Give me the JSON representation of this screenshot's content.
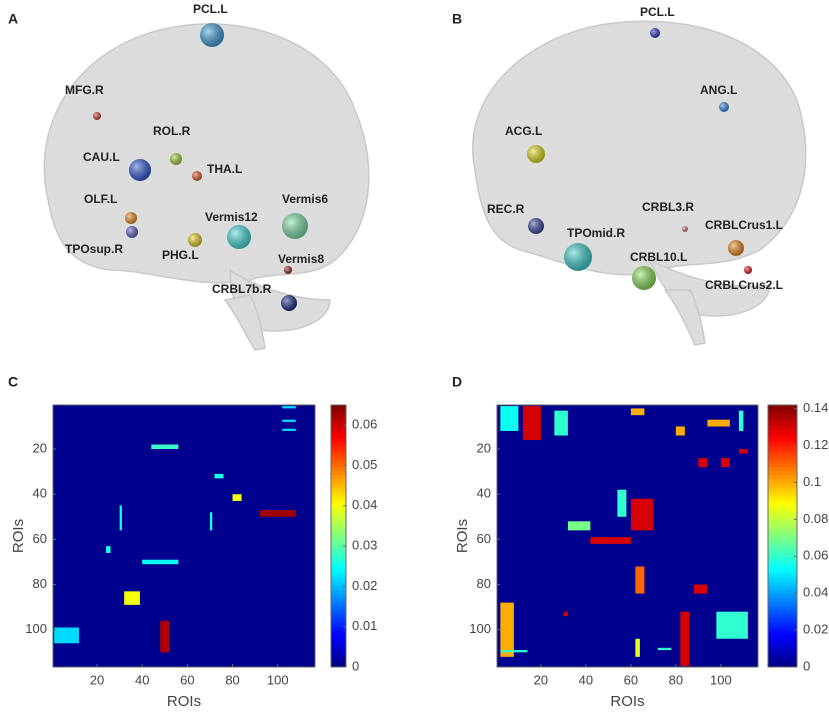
{
  "panels": [
    {
      "letter": "A",
      "nodes": [
        {
          "label": "PCL.L",
          "color": "#3ea0e0"
        },
        {
          "label": "MFG.R",
          "color": "#c8463c"
        },
        {
          "label": "ROL.R",
          "color": "#9fd23c"
        },
        {
          "label": "CAU.L",
          "color": "#2f57d8"
        },
        {
          "label": "THA.L",
          "color": "#e55a2c"
        },
        {
          "label": "OLF.L",
          "color": "#ee8a1e"
        },
        {
          "label": "TPOsup.R",
          "color": "#5a62c8"
        },
        {
          "label": "Vermis12",
          "color": "#46dcdc"
        },
        {
          "label": "Vermis6",
          "color": "#7ee0a8"
        },
        {
          "label": "PHG.L",
          "color": "#e6d21e"
        },
        {
          "label": "Vermis8",
          "color": "#a0281e"
        },
        {
          "label": "CRBL7b.R",
          "color": "#1e2a8c"
        }
      ]
    },
    {
      "letter": "B",
      "nodes": [
        {
          "label": "PCL.L",
          "color": "#2838c8"
        },
        {
          "label": "ANG.L",
          "color": "#2f8ce0"
        },
        {
          "label": "ACG.L",
          "color": "#e0dc1e"
        },
        {
          "label": "REC.R",
          "color": "#3a48a0"
        },
        {
          "label": "CRBL3.R",
          "color": "#d08080"
        },
        {
          "label": "CRBLCrus1.L",
          "color": "#ee8a1e"
        },
        {
          "label": "TPOmid.R",
          "color": "#3ed0d0"
        },
        {
          "label": "CRBL10.L",
          "color": "#8ee05a"
        },
        {
          "label": "CRBLCrus2.L",
          "color": "#e01e1e"
        }
      ]
    }
  ],
  "chart_data": [
    {
      "type": "heatmap",
      "letter": "C",
      "xlabel": "ROIs",
      "ylabel": "ROIs",
      "xlim": [
        0.5,
        116.5
      ],
      "ylim": [
        0.5,
        116.5
      ],
      "y_reversed": true,
      "xticks": [
        20,
        40,
        60,
        80,
        100
      ],
      "yticks": [
        20,
        40,
        60,
        80,
        100
      ],
      "clim": [
        0,
        0.065
      ],
      "cticks": [
        0,
        0.01,
        0.02,
        0.03,
        0.04,
        0.05,
        0.06
      ],
      "colormap": "jet",
      "background": "#00008f",
      "cells": [
        {
          "x0": 102,
          "x1": 108,
          "y0": 1,
          "y1": 2,
          "value": 0.022
        },
        {
          "x0": 102,
          "x1": 108,
          "y0": 7,
          "y1": 8,
          "value": 0.022
        },
        {
          "x0": 102,
          "x1": 108,
          "y0": 11,
          "y1": 12,
          "value": 0.022
        },
        {
          "x0": 44,
          "x1": 56,
          "y0": 18,
          "y1": 20,
          "value": 0.028
        },
        {
          "x0": 72,
          "x1": 76,
          "y0": 31,
          "y1": 33,
          "value": 0.026
        },
        {
          "x0": 80,
          "x1": 84,
          "y0": 40,
          "y1": 43,
          "value": 0.04
        },
        {
          "x0": 92,
          "x1": 108,
          "y0": 47,
          "y1": 50,
          "value": 0.063
        },
        {
          "x0": 30,
          "x1": 31,
          "y0": 45,
          "y1": 56,
          "value": 0.026
        },
        {
          "x0": 70,
          "x1": 71,
          "y0": 48,
          "y1": 56,
          "value": 0.026
        },
        {
          "x0": 40,
          "x1": 56,
          "y0": 69,
          "y1": 71,
          "value": 0.025
        },
        {
          "x0": 32,
          "x1": 39,
          "y0": 83,
          "y1": 89,
          "value": 0.04
        },
        {
          "x0": 1,
          "x1": 12,
          "y0": 99,
          "y1": 106,
          "value": 0.022
        },
        {
          "x0": 48,
          "x1": 52,
          "y0": 96,
          "y1": 110,
          "value": 0.062
        },
        {
          "x0": 24,
          "x1": 26,
          "y0": 63,
          "y1": 66,
          "value": 0.026
        }
      ]
    },
    {
      "type": "heatmap",
      "letter": "D",
      "xlabel": "ROIs",
      "ylabel": "ROIs",
      "xlim": [
        0.5,
        116.5
      ],
      "ylim": [
        0.5,
        116.5
      ],
      "y_reversed": true,
      "xticks": [
        20,
        40,
        60,
        80,
        100
      ],
      "yticks": [
        20,
        40,
        60,
        80,
        100
      ],
      "clim": [
        0,
        0.142
      ],
      "cticks": [
        0,
        0.02,
        0.04,
        0.06,
        0.08,
        0.1,
        0.12,
        0.14
      ],
      "colormap": "jet",
      "background": "#00008f",
      "cells": [
        {
          "x0": 2,
          "x1": 10,
          "y0": 1,
          "y1": 12,
          "value": 0.055
        },
        {
          "x0": 12,
          "x1": 20,
          "y0": 1,
          "y1": 16,
          "value": 0.13
        },
        {
          "x0": 26,
          "x1": 32,
          "y0": 3,
          "y1": 14,
          "value": 0.06
        },
        {
          "x0": 60,
          "x1": 66,
          "y0": 2,
          "y1": 5,
          "value": 0.1
        },
        {
          "x0": 94,
          "x1": 104,
          "y0": 7,
          "y1": 10,
          "value": 0.1
        },
        {
          "x0": 108,
          "x1": 110,
          "y0": 3,
          "y1": 12,
          "value": 0.06
        },
        {
          "x0": 80,
          "x1": 84,
          "y0": 10,
          "y1": 14,
          "value": 0.1
        },
        {
          "x0": 90,
          "x1": 94,
          "y0": 24,
          "y1": 28,
          "value": 0.13
        },
        {
          "x0": 100,
          "x1": 104,
          "y0": 24,
          "y1": 28,
          "value": 0.13
        },
        {
          "x0": 60,
          "x1": 70,
          "y0": 42,
          "y1": 56,
          "value": 0.13
        },
        {
          "x0": 42,
          "x1": 60,
          "y0": 59,
          "y1": 62,
          "value": 0.13
        },
        {
          "x0": 32,
          "x1": 42,
          "y0": 52,
          "y1": 56,
          "value": 0.07
        },
        {
          "x0": 54,
          "x1": 58,
          "y0": 38,
          "y1": 50,
          "value": 0.06
        },
        {
          "x0": 62,
          "x1": 66,
          "y0": 72,
          "y1": 84,
          "value": 0.11
        },
        {
          "x0": 88,
          "x1": 94,
          "y0": 80,
          "y1": 84,
          "value": 0.13
        },
        {
          "x0": 2,
          "x1": 8,
          "y0": 88,
          "y1": 112,
          "value": 0.1
        },
        {
          "x0": 82,
          "x1": 86,
          "y0": 92,
          "y1": 116,
          "value": 0.13
        },
        {
          "x0": 98,
          "x1": 112,
          "y0": 92,
          "y1": 104,
          "value": 0.06
        },
        {
          "x0": 2,
          "x1": 14,
          "y0": 109,
          "y1": 110,
          "value": 0.06
        },
        {
          "x0": 72,
          "x1": 78,
          "y0": 108,
          "y1": 109,
          "value": 0.06
        },
        {
          "x0": 108,
          "x1": 112,
          "y0": 20,
          "y1": 22,
          "value": 0.13
        },
        {
          "x0": 30,
          "x1": 32,
          "y0": 92,
          "y1": 94,
          "value": 0.13
        },
        {
          "x0": 62,
          "x1": 64,
          "y0": 104,
          "y1": 112,
          "value": 0.085
        }
      ]
    }
  ]
}
